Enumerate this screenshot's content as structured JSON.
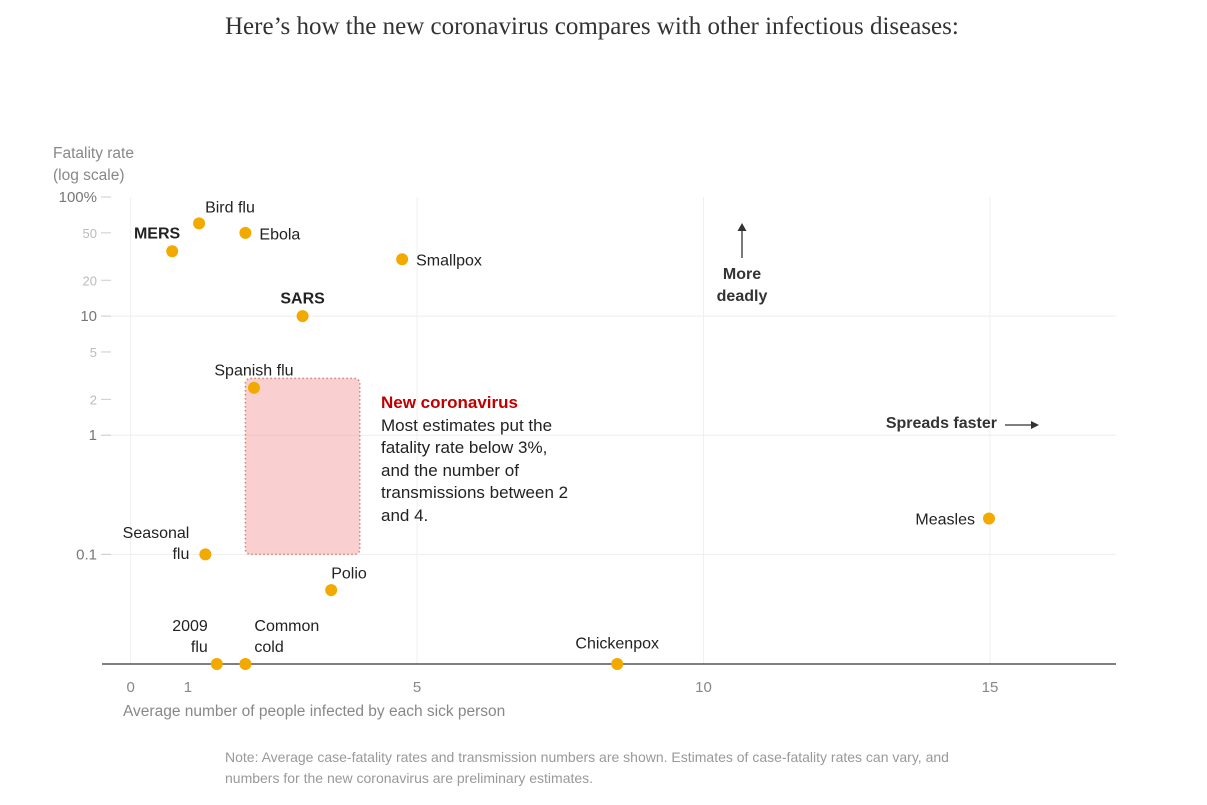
{
  "chart_data": {
    "type": "scatter",
    "title": "Here’s how the new coronavirus compares with other infectious diseases:",
    "y_label": "Fatality rate (log scale)",
    "x_label": "Average number of people infected by each sick person",
    "note": "Note: Average case-fatality rates and transmission numbers are shown. Estimates of case-fatality rates can vary, and numbers for the new coronavirus are preliminary estimates.",
    "categories": [
      "MERS",
      "Bird flu",
      "Ebola",
      "Smallpox",
      "SARS",
      "Spanish flu",
      "Seasonal flu",
      "Polio",
      "Measles",
      "2009 flu",
      "Common cold",
      "Chickenpox"
    ],
    "x": [
      0.72,
      1.19,
      2.0,
      4.74,
      3.0,
      2.15,
      1.3,
      3.5,
      15,
      1.5,
      2.0,
      8.5
    ],
    "values": [
      35,
      60,
      50,
      30,
      10,
      2.5,
      0.1,
      0.05,
      0.2,
      0.012,
      0.012,
      0.012
    ],
    "color": "#f2a900",
    "bold_labels": [
      0,
      4
    ],
    "log_y": true,
    "grid": true,
    "xlim": [
      -0.5,
      17.2
    ],
    "ylim": [
      0.012,
      100
    ],
    "xticks": [
      0,
      1,
      5,
      10,
      15
    ],
    "yticks": [
      {
        "value": 100,
        "label": "100%"
      },
      50,
      20,
      10,
      5,
      2,
      1,
      0.1
    ],
    "highlight": {
      "title": "New coronavirus",
      "text": "Most estimates put the fatality rate below 3%, and the number of transmissions between 2 and 4.",
      "x": [
        2,
        4
      ],
      "y": [
        0.1,
        3
      ],
      "color": "#c00000"
    },
    "annotations": {
      "up": "More deadly",
      "right": "Spreads faster"
    }
  }
}
